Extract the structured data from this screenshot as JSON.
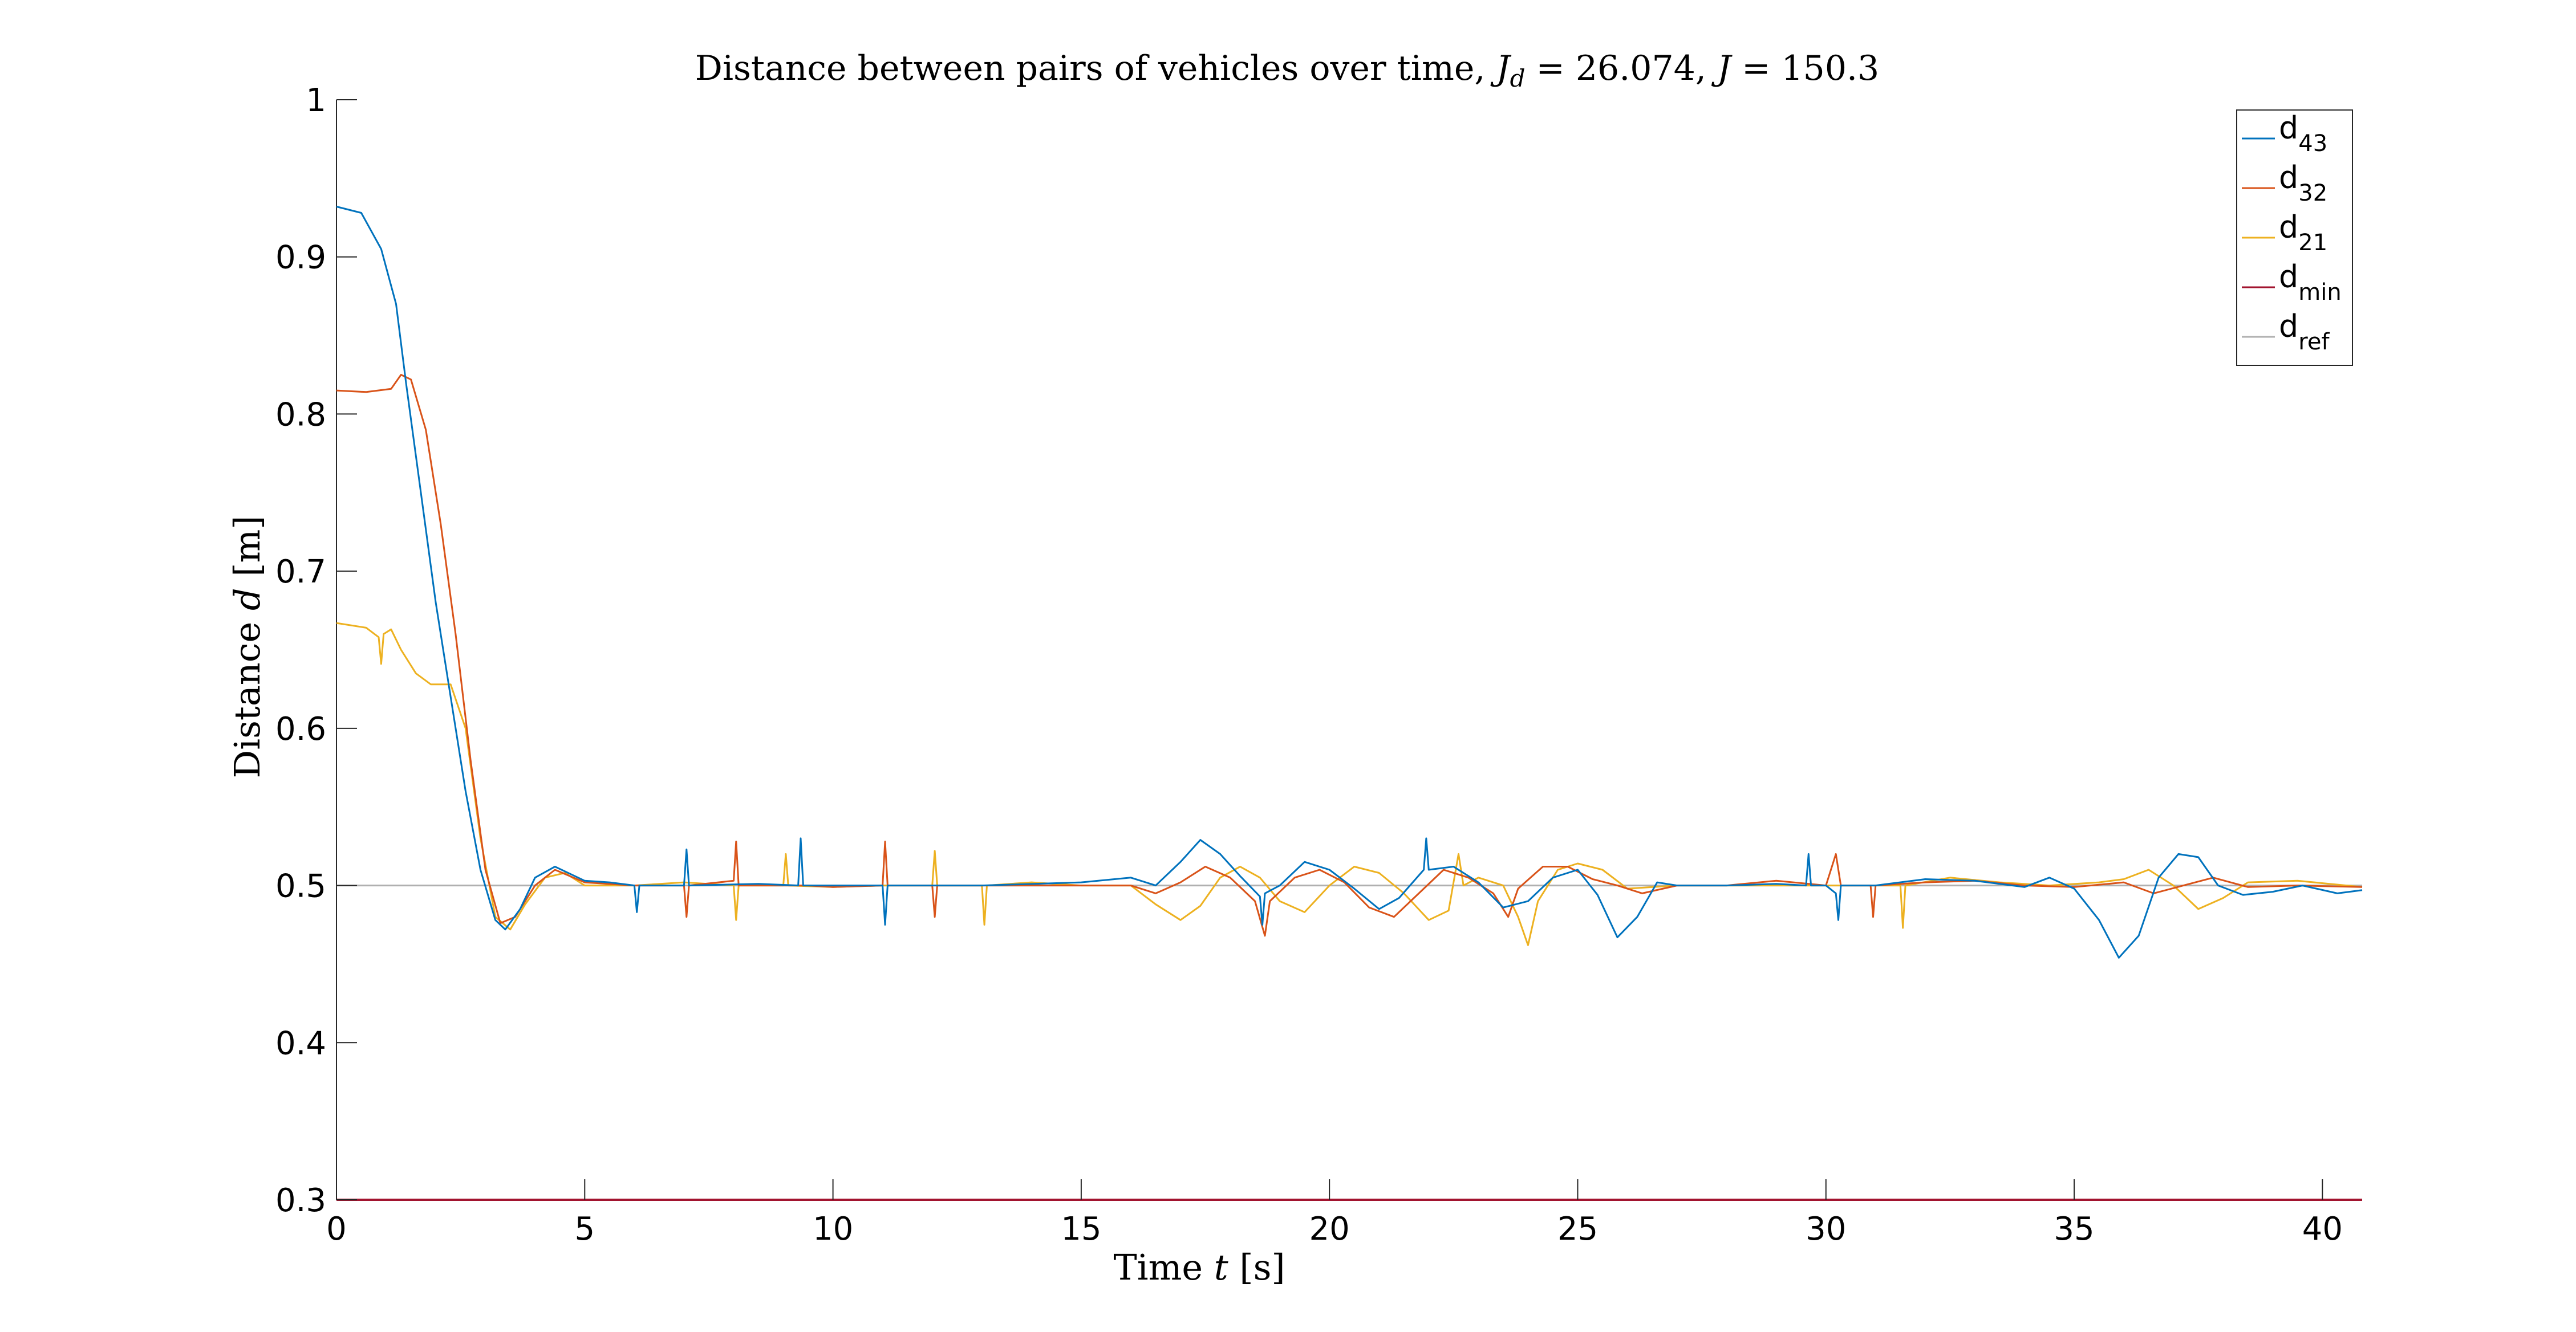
{
  "chart_data": {
    "type": "line",
    "title": "Distance between pairs of vehicles over time, Jd = 26.074, J = 150.3",
    "title_parts": {
      "prefix": "Distance between pairs of vehicles over time, ",
      "jd_symbol": "J",
      "jd_sub": "d",
      "jd_value": " = 26.074, ",
      "j_symbol": "J",
      "j_value": " = 150.3"
    },
    "xlabel": "Time t [s]",
    "xlabel_parts": {
      "word": "Time ",
      "var": "t",
      "unit": " [s]"
    },
    "ylabel": "Distance d [m]",
    "ylabel_parts": {
      "word": "Distance ",
      "var": "d",
      "unit": " [m]"
    },
    "xlim": [
      0,
      40.8
    ],
    "ylim": [
      0.3,
      1
    ],
    "xticks": [
      0,
      5,
      10,
      15,
      20,
      25,
      30,
      35,
      40
    ],
    "xtick_labels": [
      "0",
      "5",
      "10",
      "15",
      "20",
      "25",
      "30",
      "35",
      "40"
    ],
    "yticks": [
      0.3,
      0.4,
      0.5,
      0.6,
      0.7,
      0.8,
      0.9,
      1
    ],
    "ytick_labels": [
      "0.3",
      "0.4",
      "0.5",
      "0.6",
      "0.7",
      "0.8",
      "0.9",
      "1"
    ],
    "grid": false,
    "legend_position": "top-right",
    "series": [
      {
        "name": "d43",
        "label_main": "d",
        "label_sub": "43",
        "color": "#0072BD",
        "points": [
          [
            0,
            0.932
          ],
          [
            0.5,
            0.928
          ],
          [
            0.9,
            0.905
          ],
          [
            1.2,
            0.87
          ],
          [
            1.4,
            0.82
          ],
          [
            1.7,
            0.75
          ],
          [
            2.0,
            0.68
          ],
          [
            2.3,
            0.62
          ],
          [
            2.6,
            0.56
          ],
          [
            2.9,
            0.51
          ],
          [
            3.2,
            0.478
          ],
          [
            3.4,
            0.472
          ],
          [
            3.7,
            0.485
          ],
          [
            4.0,
            0.505
          ],
          [
            4.4,
            0.512
          ],
          [
            5.0,
            0.503
          ],
          [
            5.5,
            0.502
          ],
          [
            6.0,
            0.5
          ],
          [
            6.05,
            0.483
          ],
          [
            6.1,
            0.5
          ],
          [
            7.0,
            0.5
          ],
          [
            7.05,
            0.523
          ],
          [
            7.1,
            0.5
          ],
          [
            8.5,
            0.501
          ],
          [
            9.3,
            0.5
          ],
          [
            9.35,
            0.53
          ],
          [
            9.4,
            0.5
          ],
          [
            11.0,
            0.5
          ],
          [
            11.05,
            0.475
          ],
          [
            11.1,
            0.5
          ],
          [
            13.0,
            0.5
          ],
          [
            15.0,
            0.502
          ],
          [
            16.0,
            0.505
          ],
          [
            16.5,
            0.5
          ],
          [
            17.0,
            0.515
          ],
          [
            17.4,
            0.529
          ],
          [
            17.8,
            0.52
          ],
          [
            18.2,
            0.506
          ],
          [
            18.6,
            0.493
          ],
          [
            18.65,
            0.475
          ],
          [
            18.7,
            0.495
          ],
          [
            19.0,
            0.5
          ],
          [
            19.5,
            0.515
          ],
          [
            20.0,
            0.51
          ],
          [
            20.5,
            0.498
          ],
          [
            21.0,
            0.485
          ],
          [
            21.4,
            0.492
          ],
          [
            21.9,
            0.51
          ],
          [
            21.95,
            0.53
          ],
          [
            22.0,
            0.51
          ],
          [
            22.5,
            0.512
          ],
          [
            23.0,
            0.502
          ],
          [
            23.5,
            0.486
          ],
          [
            24.0,
            0.49
          ],
          [
            24.5,
            0.505
          ],
          [
            25.0,
            0.51
          ],
          [
            25.4,
            0.494
          ],
          [
            25.8,
            0.467
          ],
          [
            26.2,
            0.48
          ],
          [
            26.6,
            0.502
          ],
          [
            27.0,
            0.5
          ],
          [
            28.0,
            0.5
          ],
          [
            29.0,
            0.501
          ],
          [
            29.6,
            0.5
          ],
          [
            29.65,
            0.52
          ],
          [
            29.7,
            0.5
          ],
          [
            30.0,
            0.5
          ],
          [
            30.2,
            0.495
          ],
          [
            30.25,
            0.478
          ],
          [
            30.3,
            0.5
          ],
          [
            31.0,
            0.5
          ],
          [
            32.0,
            0.504
          ],
          [
            33.0,
            0.503
          ],
          [
            34.0,
            0.499
          ],
          [
            34.5,
            0.505
          ],
          [
            35.0,
            0.498
          ],
          [
            35.5,
            0.478
          ],
          [
            35.9,
            0.454
          ],
          [
            36.3,
            0.468
          ],
          [
            36.7,
            0.505
          ],
          [
            37.1,
            0.52
          ],
          [
            37.5,
            0.518
          ],
          [
            37.9,
            0.5
          ],
          [
            38.4,
            0.494
          ],
          [
            39.0,
            0.496
          ],
          [
            39.6,
            0.5
          ],
          [
            40.3,
            0.495
          ],
          [
            40.8,
            0.497
          ]
        ]
      },
      {
        "name": "d32",
        "label_main": "d",
        "label_sub": "32",
        "color": "#D95319",
        "points": [
          [
            0,
            0.815
          ],
          [
            0.6,
            0.814
          ],
          [
            1.1,
            0.816
          ],
          [
            1.3,
            0.825
          ],
          [
            1.5,
            0.822
          ],
          [
            1.8,
            0.79
          ],
          [
            2.1,
            0.73
          ],
          [
            2.4,
            0.66
          ],
          [
            2.7,
            0.58
          ],
          [
            3.0,
            0.51
          ],
          [
            3.3,
            0.476
          ],
          [
            3.6,
            0.48
          ],
          [
            4.0,
            0.5
          ],
          [
            4.4,
            0.51
          ],
          [
            5.0,
            0.502
          ],
          [
            6.0,
            0.5
          ],
          [
            7.0,
            0.5
          ],
          [
            7.05,
            0.48
          ],
          [
            7.1,
            0.5
          ],
          [
            8.0,
            0.503
          ],
          [
            8.05,
            0.528
          ],
          [
            8.1,
            0.5
          ],
          [
            9.5,
            0.5
          ],
          [
            10.0,
            0.499
          ],
          [
            11.0,
            0.5
          ],
          [
            11.05,
            0.528
          ],
          [
            11.1,
            0.5
          ],
          [
            12.0,
            0.5
          ],
          [
            12.05,
            0.48
          ],
          [
            12.1,
            0.5
          ],
          [
            14.0,
            0.5
          ],
          [
            16.0,
            0.5
          ],
          [
            16.5,
            0.495
          ],
          [
            17.0,
            0.502
          ],
          [
            17.5,
            0.512
          ],
          [
            18.0,
            0.505
          ],
          [
            18.5,
            0.49
          ],
          [
            18.7,
            0.468
          ],
          [
            18.8,
            0.49
          ],
          [
            19.3,
            0.505
          ],
          [
            19.8,
            0.51
          ],
          [
            20.3,
            0.502
          ],
          [
            20.8,
            0.486
          ],
          [
            21.3,
            0.48
          ],
          [
            21.8,
            0.495
          ],
          [
            22.3,
            0.51
          ],
          [
            22.8,
            0.505
          ],
          [
            23.3,
            0.495
          ],
          [
            23.6,
            0.48
          ],
          [
            23.8,
            0.498
          ],
          [
            24.3,
            0.512
          ],
          [
            24.8,
            0.512
          ],
          [
            25.3,
            0.504
          ],
          [
            25.8,
            0.5
          ],
          [
            26.3,
            0.495
          ],
          [
            27.0,
            0.5
          ],
          [
            28.0,
            0.5
          ],
          [
            29.0,
            0.503
          ],
          [
            30.0,
            0.5
          ],
          [
            30.2,
            0.52
          ],
          [
            30.3,
            0.5
          ],
          [
            30.9,
            0.5
          ],
          [
            30.95,
            0.48
          ],
          [
            31.0,
            0.5
          ],
          [
            32.0,
            0.502
          ],
          [
            33.0,
            0.503
          ],
          [
            34.0,
            0.5
          ],
          [
            35.0,
            0.499
          ],
          [
            36.0,
            0.502
          ],
          [
            36.6,
            0.495
          ],
          [
            37.2,
            0.5
          ],
          [
            37.8,
            0.505
          ],
          [
            38.5,
            0.499
          ],
          [
            39.5,
            0.5
          ],
          [
            40.8,
            0.499
          ]
        ]
      },
      {
        "name": "d21",
        "label_main": "d",
        "label_sub": "21",
        "color": "#EDB120",
        "points": [
          [
            0,
            0.667
          ],
          [
            0.6,
            0.664
          ],
          [
            0.85,
            0.658
          ],
          [
            0.9,
            0.641
          ],
          [
            0.95,
            0.66
          ],
          [
            1.1,
            0.663
          ],
          [
            1.3,
            0.65
          ],
          [
            1.6,
            0.635
          ],
          [
            1.9,
            0.628
          ],
          [
            2.3,
            0.628
          ],
          [
            2.6,
            0.6
          ],
          [
            2.9,
            0.53
          ],
          [
            3.2,
            0.48
          ],
          [
            3.5,
            0.472
          ],
          [
            3.8,
            0.488
          ],
          [
            4.2,
            0.505
          ],
          [
            4.6,
            0.508
          ],
          [
            5.0,
            0.5
          ],
          [
            6.0,
            0.5
          ],
          [
            7.0,
            0.502
          ],
          [
            8.0,
            0.5
          ],
          [
            8.05,
            0.478
          ],
          [
            8.1,
            0.5
          ],
          [
            9.0,
            0.5
          ],
          [
            9.05,
            0.52
          ],
          [
            9.1,
            0.5
          ],
          [
            10.0,
            0.499
          ],
          [
            11.0,
            0.5
          ],
          [
            12.0,
            0.5
          ],
          [
            12.05,
            0.522
          ],
          [
            12.1,
            0.5
          ],
          [
            13.0,
            0.5
          ],
          [
            13.05,
            0.475
          ],
          [
            13.1,
            0.5
          ],
          [
            14.0,
            0.502
          ],
          [
            15.0,
            0.5
          ],
          [
            16.0,
            0.5
          ],
          [
            16.5,
            0.488
          ],
          [
            17.0,
            0.478
          ],
          [
            17.4,
            0.487
          ],
          [
            17.8,
            0.505
          ],
          [
            18.2,
            0.512
          ],
          [
            18.6,
            0.505
          ],
          [
            19.0,
            0.49
          ],
          [
            19.5,
            0.483
          ],
          [
            20.0,
            0.5
          ],
          [
            20.5,
            0.512
          ],
          [
            21.0,
            0.508
          ],
          [
            21.5,
            0.495
          ],
          [
            22.0,
            0.478
          ],
          [
            22.4,
            0.484
          ],
          [
            22.6,
            0.52
          ],
          [
            22.7,
            0.5
          ],
          [
            23.0,
            0.505
          ],
          [
            23.5,
            0.5
          ],
          [
            23.8,
            0.48
          ],
          [
            24.0,
            0.462
          ],
          [
            24.2,
            0.49
          ],
          [
            24.6,
            0.51
          ],
          [
            25.0,
            0.514
          ],
          [
            25.5,
            0.51
          ],
          [
            26.0,
            0.498
          ],
          [
            27.0,
            0.5
          ],
          [
            28.0,
            0.5
          ],
          [
            29.0,
            0.5
          ],
          [
            30.0,
            0.5
          ],
          [
            31.0,
            0.5
          ],
          [
            31.5,
            0.5
          ],
          [
            31.55,
            0.473
          ],
          [
            31.6,
            0.5
          ],
          [
            32.5,
            0.505
          ],
          [
            33.5,
            0.502
          ],
          [
            34.5,
            0.5
          ],
          [
            35.5,
            0.502
          ],
          [
            36.0,
            0.504
          ],
          [
            36.5,
            0.51
          ],
          [
            37.0,
            0.5
          ],
          [
            37.5,
            0.485
          ],
          [
            38.0,
            0.492
          ],
          [
            38.5,
            0.502
          ],
          [
            39.5,
            0.503
          ],
          [
            40.8,
            0.499
          ]
        ]
      },
      {
        "name": "dmin",
        "label_main": "d",
        "label_sub": "min",
        "color": "#A2142F",
        "points": [
          [
            0,
            0.3
          ],
          [
            40.8,
            0.3
          ]
        ]
      },
      {
        "name": "dref",
        "label_main": "d",
        "label_sub": "ref",
        "color": "#B0B0B0",
        "points": [
          [
            0,
            0.5
          ],
          [
            40.8,
            0.5
          ]
        ]
      }
    ]
  }
}
